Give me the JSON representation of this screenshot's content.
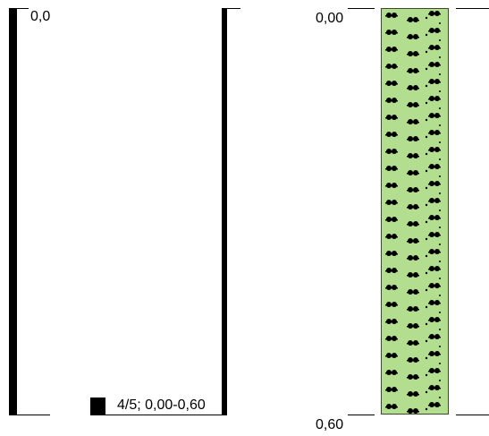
{
  "left_panel": {
    "top_label": "0,0",
    "legend_label": "4/5; 0,00-0,60"
  },
  "right_panel": {
    "top_depth": "0,00",
    "bottom_depth": "0,60",
    "layer": {
      "fill_color": "#b3de8f",
      "pattern_icon": "grass-tuft-icon"
    }
  }
}
